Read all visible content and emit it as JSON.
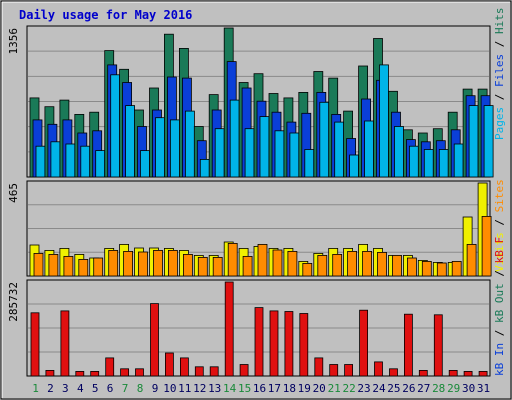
{
  "chart_data": {
    "type": "bar",
    "title": "Daily usage for May 2016",
    "categories": [
      "1",
      "2",
      "3",
      "4",
      "5",
      "6",
      "7",
      "8",
      "9",
      "10",
      "11",
      "12",
      "13",
      "14",
      "15",
      "16",
      "17",
      "18",
      "19",
      "20",
      "21",
      "22",
      "23",
      "24",
      "25",
      "26",
      "27",
      "28",
      "29",
      "30",
      "31"
    ],
    "weekend_days": [
      "1",
      "7",
      "8",
      "14",
      "15",
      "21",
      "22",
      "28",
      "29"
    ],
    "legend": {
      "top": [
        {
          "label": "Pages",
          "color": "#00b4e8"
        },
        {
          "label": "Files",
          "color": "#0a3fd8"
        },
        {
          "label": "Hits",
          "color": "#1a7a58"
        }
      ],
      "middle": [
        {
          "label": "Visits",
          "color": "#f0f000"
        },
        {
          "label": "Sites",
          "color": "#ff8c00"
        }
      ],
      "bottom": [
        {
          "label": "kB In",
          "color": "#0a3fd8"
        },
        {
          "label": "kB Out",
          "color": "#1a7a58"
        },
        {
          "label": "kB F",
          "color": "#e01010"
        }
      ],
      "separator": "/"
    },
    "panels": [
      {
        "name": "hits-files-pages",
        "ymax_label": "1356",
        "ylim": [
          0,
          1356
        ],
        "series": [
          {
            "name": "Hits",
            "color": "#1a7a58",
            "values": [
              720,
              640,
              700,
              570,
              590,
              1150,
              980,
              610,
              810,
              1300,
              1170,
              460,
              750,
              1370,
              860,
              940,
              760,
              720,
              770,
              960,
              900,
              600,
              1010,
              1260,
              780,
              430,
              400,
              440,
              590,
              800,
              800
            ]
          },
          {
            "name": "Files",
            "color": "#0a3fd8",
            "values": [
              520,
              480,
              520,
              400,
              420,
              1020,
              860,
              460,
              610,
              910,
              900,
              330,
              610,
              1050,
              810,
              690,
              590,
              500,
              580,
              770,
              570,
              350,
              710,
              880,
              590,
              340,
              320,
              330,
              430,
              740,
              740
            ]
          },
          {
            "name": "Pages",
            "color": "#00b4e8",
            "values": [
              280,
              320,
              300,
              280,
              240,
              930,
              650,
              240,
              540,
              520,
              600,
              160,
              440,
              700,
              440,
              550,
              420,
              400,
              250,
              680,
              500,
              200,
              510,
              1020,
              460,
              280,
              250,
              250,
              300,
              650,
              650
            ]
          }
        ]
      },
      {
        "name": "visits-sites",
        "ymax_label": "465",
        "ylim": [
          0,
          465
        ],
        "series": [
          {
            "name": "Visits",
            "color": "#f0f000",
            "values": [
              155,
              128,
              138,
              108,
              90,
              138,
              158,
              140,
              140,
              138,
              128,
              103,
              103,
              170,
              138,
              148,
              138,
              138,
              73,
              113,
              138,
              138,
              158,
              138,
              103,
              103,
              78,
              68,
              68,
              295,
              465
            ]
          },
          {
            "name": "Sites",
            "color": "#ff8c00",
            "values": [
              113,
              108,
              98,
              83,
              90,
              128,
              123,
              120,
              128,
              128,
              108,
              93,
              93,
              163,
              98,
              158,
              130,
              123,
              63,
              103,
              108,
              123,
              123,
              118,
              103,
              90,
              73,
              65,
              73,
              158,
              298
            ]
          }
        ]
      },
      {
        "name": "kbytes",
        "ymax_label": "285732",
        "ylim": [
          0,
          285732
        ],
        "series": [
          {
            "name": "kB F",
            "color": "#e01010",
            "values": [
              192000,
              17000,
              198000,
              14000,
              14000,
              55000,
              22000,
              22000,
              220000,
              70000,
              55000,
              28000,
              28000,
              285732,
              35000,
              208000,
              198000,
              196000,
              190000,
              55000,
              35000,
              35000,
              200000,
              43000,
              22000,
              188000,
              17000,
              186000,
              17000,
              14000,
              14000
            ]
          }
        ]
      }
    ]
  }
}
